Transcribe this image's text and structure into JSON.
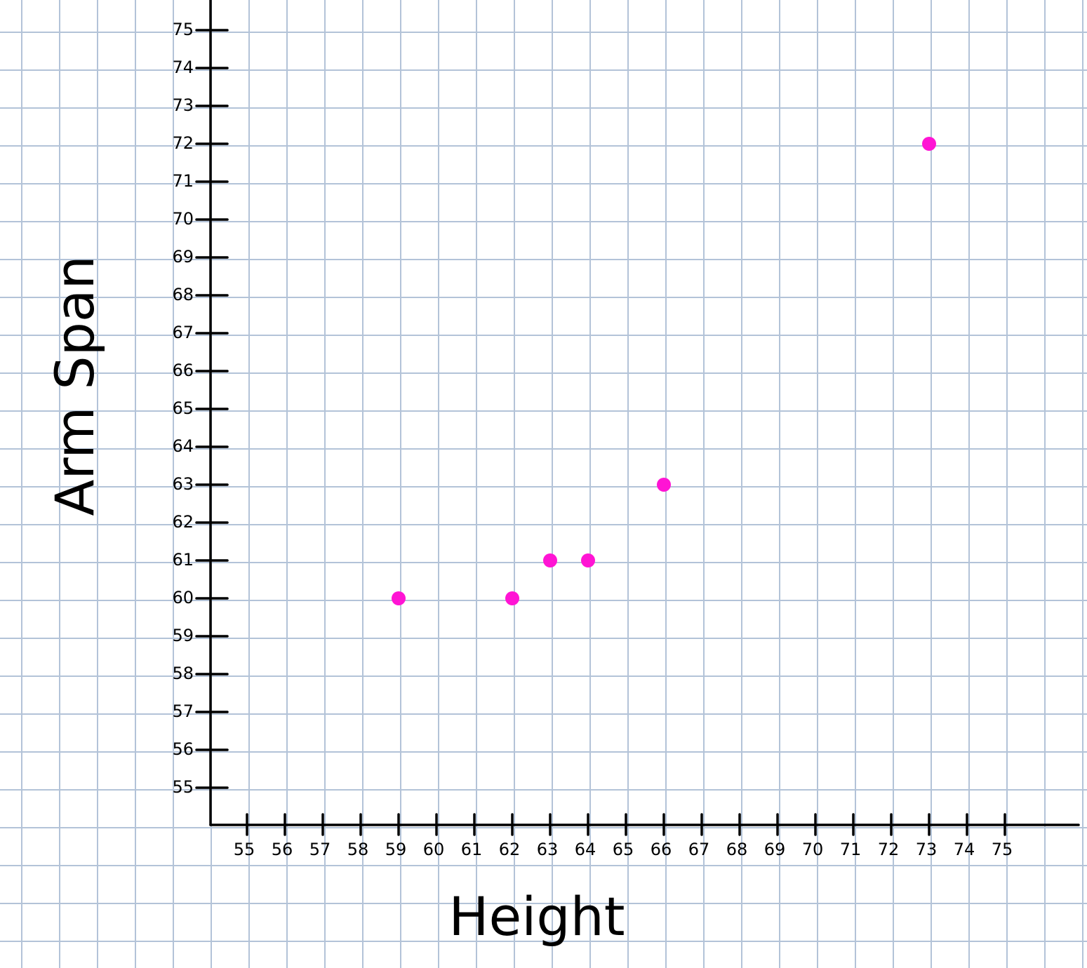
{
  "chart_data": {
    "type": "scatter",
    "xlabel": "Height",
    "ylabel": "Arm Span",
    "x": [
      59,
      62,
      63,
      64,
      66,
      73
    ],
    "series": [
      {
        "color": "#ff14d4",
        "values": [
          60,
          60,
          61,
          61,
          63,
          72
        ]
      }
    ],
    "xlim": [
      54,
      77
    ],
    "ylim": [
      54,
      76
    ],
    "xticks": [
      55,
      56,
      57,
      58,
      59,
      60,
      61,
      62,
      63,
      64,
      65,
      66,
      67,
      68,
      69,
      70,
      71,
      72,
      73,
      74,
      75
    ],
    "yticks": [
      55,
      56,
      57,
      58,
      59,
      60,
      61,
      62,
      63,
      64,
      65,
      66,
      67,
      68,
      69,
      70,
      71,
      72,
      73,
      74,
      75
    ]
  }
}
